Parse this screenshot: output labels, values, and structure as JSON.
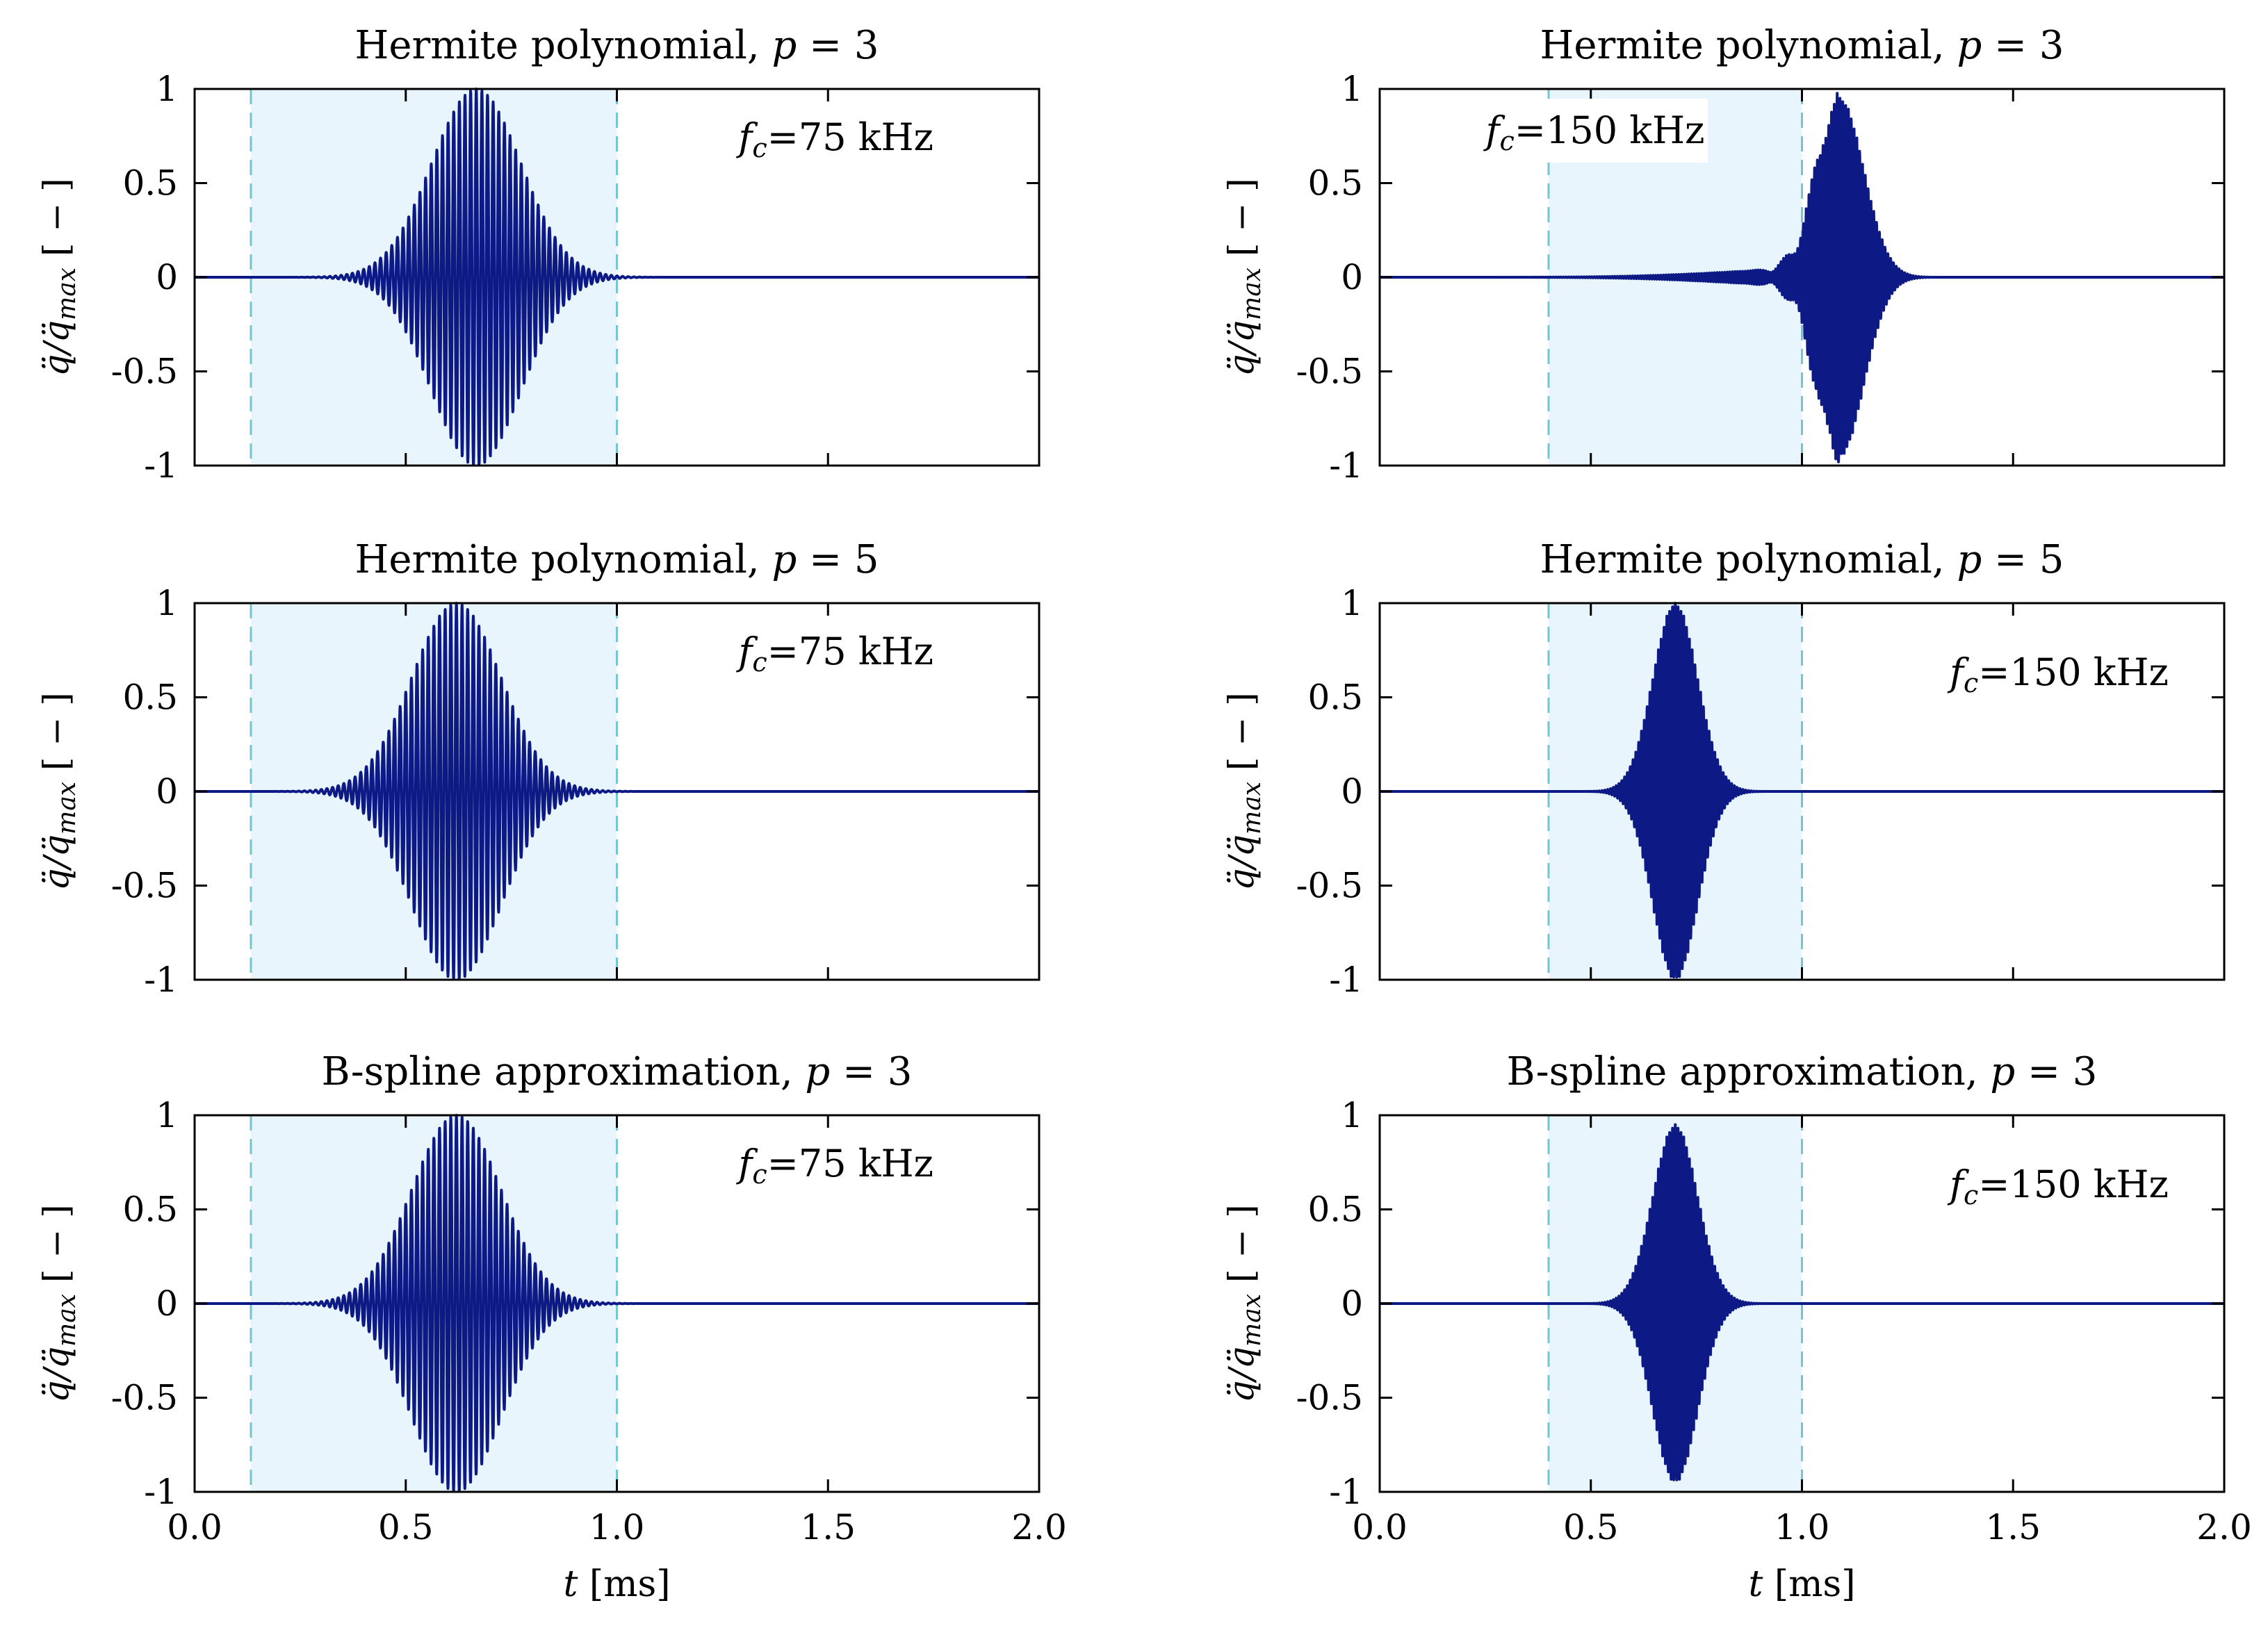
{
  "colors": {
    "signal": "#0d1a85",
    "shade": "#e8f5fc",
    "dashed": "#74c6cf",
    "axis": "#000000"
  },
  "chart_data": [
    {
      "type": "line",
      "title_text": "Hermite polynomial, ",
      "title_var": "p",
      "title_eq": " = 3",
      "ylabel_main": "q̈/q̈",
      "ylabel_sub": "max",
      "ylabel_unit": " [ − ]",
      "xlabel_var": "t",
      "xlabel_unit": " [ms]",
      "xlim": [
        0.0,
        2.0
      ],
      "ylim": [
        -1,
        1
      ],
      "xticks": [
        0.0,
        0.5,
        1.0,
        1.5,
        2.0
      ],
      "xtick_labels": [
        "0.0",
        "0.5",
        "1.0",
        "1.5",
        "2.0"
      ],
      "yticks": [
        1,
        0.5,
        0,
        -0.5,
        -1
      ],
      "ytick_labels": [
        "1",
        "0.5",
        "0",
        "-0.5",
        "-1"
      ],
      "show_xtick_labels": false,
      "show_xlabel": false,
      "annotation_sym": "f",
      "annotation_sub": "c",
      "annotation_val": "=75 kHz",
      "annotation_position": "top-right",
      "window": [
        0.1333,
        1.0
      ],
      "signal": {
        "center": 0.667,
        "frequency_khz": 75,
        "envelope_sigma": 0.15,
        "envelope_power": 2,
        "peak": 1.0,
        "precursor": 0
      }
    },
    {
      "type": "line",
      "title_text": "Hermite polynomial, ",
      "title_var": "p",
      "title_eq": " = 3",
      "ylabel_main": "q̈/q̈",
      "ylabel_sub": "max",
      "ylabel_unit": " [ − ]",
      "xlabel_var": "t",
      "xlabel_unit": " [ms]",
      "xlim": [
        0.0,
        2.0
      ],
      "ylim": [
        -1,
        1
      ],
      "xticks": [
        0.0,
        0.5,
        1.0,
        1.5,
        2.0
      ],
      "xtick_labels": [
        "0.0",
        "0.5",
        "1.0",
        "1.5",
        "2.0"
      ],
      "yticks": [
        1,
        0.5,
        0,
        -0.5,
        -1
      ],
      "ytick_labels": [
        "1",
        "0.5",
        "0",
        "-0.5",
        "-1"
      ],
      "show_xtick_labels": false,
      "show_xlabel": false,
      "annotation_sym": "f",
      "annotation_sub": "c",
      "annotation_val": "=150 kHz",
      "annotation_position": "top-left",
      "window": [
        0.4,
        1.0
      ],
      "signal": {
        "center": 1.09,
        "frequency_khz": 150,
        "envelope_sigma": 0.08,
        "envelope_power": 2,
        "peak": 0.95,
        "precursor": 0.05
      }
    },
    {
      "type": "line",
      "title_text": "Hermite polynomial, ",
      "title_var": "p",
      "title_eq": " = 5",
      "ylabel_main": "q̈/q̈",
      "ylabel_sub": "max",
      "ylabel_unit": " [ − ]",
      "xlabel_var": "t",
      "xlabel_unit": " [ms]",
      "xlim": [
        0.0,
        2.0
      ],
      "ylim": [
        -1,
        1
      ],
      "xticks": [
        0.0,
        0.5,
        1.0,
        1.5,
        2.0
      ],
      "xtick_labels": [
        "0.0",
        "0.5",
        "1.0",
        "1.5",
        "2.0"
      ],
      "yticks": [
        1,
        0.5,
        0,
        -0.5,
        -1
      ],
      "ytick_labels": [
        "1",
        "0.5",
        "0",
        "-0.5",
        "-1"
      ],
      "show_xtick_labels": false,
      "show_xlabel": false,
      "annotation_sym": "f",
      "annotation_sub": "c",
      "annotation_val": "=75 kHz",
      "annotation_position": "top-right",
      "window": [
        0.1333,
        1.0
      ],
      "signal": {
        "center": 0.62,
        "frequency_khz": 75,
        "envelope_sigma": 0.15,
        "envelope_power": 2,
        "peak": 1.0,
        "precursor": 0
      }
    },
    {
      "type": "line",
      "title_text": "Hermite polynomial, ",
      "title_var": "p",
      "title_eq": " = 5",
      "ylabel_main": "q̈/q̈",
      "ylabel_sub": "max",
      "ylabel_unit": " [ − ]",
      "xlabel_var": "t",
      "xlabel_unit": " [ms]",
      "xlim": [
        0.0,
        2.0
      ],
      "ylim": [
        -1,
        1
      ],
      "xticks": [
        0.0,
        0.5,
        1.0,
        1.5,
        2.0
      ],
      "xtick_labels": [
        "0.0",
        "0.5",
        "1.0",
        "1.5",
        "2.0"
      ],
      "yticks": [
        1,
        0.5,
        0,
        -0.5,
        -1
      ],
      "ytick_labels": [
        "1",
        "0.5",
        "0",
        "-0.5",
        "-1"
      ],
      "show_xtick_labels": false,
      "show_xlabel": false,
      "annotation_sym": "f",
      "annotation_sub": "c",
      "annotation_val": "=150 kHz",
      "annotation_position": "right",
      "window": [
        0.4,
        1.0
      ],
      "signal": {
        "center": 0.7,
        "frequency_khz": 150,
        "envelope_sigma": 0.075,
        "envelope_power": 2,
        "peak": 1.0,
        "precursor": 0
      }
    },
    {
      "type": "line",
      "title_text": "B-spline approximation, ",
      "title_var": "p",
      "title_eq": " = 3",
      "ylabel_main": "q̈/q̈",
      "ylabel_sub": "max",
      "ylabel_unit": " [ − ]",
      "xlabel_var": "t",
      "xlabel_unit": " [ms]",
      "xlim": [
        0.0,
        2.0
      ],
      "ylim": [
        -1,
        1
      ],
      "xticks": [
        0.0,
        0.5,
        1.0,
        1.5,
        2.0
      ],
      "xtick_labels": [
        "0.0",
        "0.5",
        "1.0",
        "1.5",
        "2.0"
      ],
      "yticks": [
        1,
        0.5,
        0,
        -0.5,
        -1
      ],
      "ytick_labels": [
        "1",
        "0.5",
        "0",
        "-0.5",
        "-1"
      ],
      "show_xtick_labels": true,
      "show_xlabel": true,
      "annotation_sym": "f",
      "annotation_sub": "c",
      "annotation_val": "=75 kHz",
      "annotation_position": "top-right",
      "window": [
        0.1333,
        1.0
      ],
      "signal": {
        "center": 0.62,
        "frequency_khz": 75,
        "envelope_sigma": 0.15,
        "envelope_power": 2,
        "peak": 1.0,
        "precursor": 0
      }
    },
    {
      "type": "line",
      "title_text": "B-spline approximation, ",
      "title_var": "p",
      "title_eq": " = 3",
      "ylabel_main": "q̈/q̈",
      "ylabel_sub": "max",
      "ylabel_unit": " [ − ]",
      "xlabel_var": "t",
      "xlabel_unit": " [ms]",
      "xlim": [
        0.0,
        2.0
      ],
      "ylim": [
        -1,
        1
      ],
      "xticks": [
        0.0,
        0.5,
        1.0,
        1.5,
        2.0
      ],
      "xtick_labels": [
        "0.0",
        "0.5",
        "1.0",
        "1.5",
        "2.0"
      ],
      "yticks": [
        1,
        0.5,
        0,
        -0.5,
        -1
      ],
      "ytick_labels": [
        "1",
        "0.5",
        "0",
        "-0.5",
        "-1"
      ],
      "show_xtick_labels": true,
      "show_xlabel": true,
      "annotation_sym": "f",
      "annotation_sub": "c",
      "annotation_val": "=150 kHz",
      "annotation_position": "right",
      "window": [
        0.4,
        1.0
      ],
      "signal": {
        "center": 0.7,
        "frequency_khz": 150,
        "envelope_sigma": 0.075,
        "envelope_power": 2,
        "peak": 0.95,
        "precursor": 0
      }
    }
  ]
}
